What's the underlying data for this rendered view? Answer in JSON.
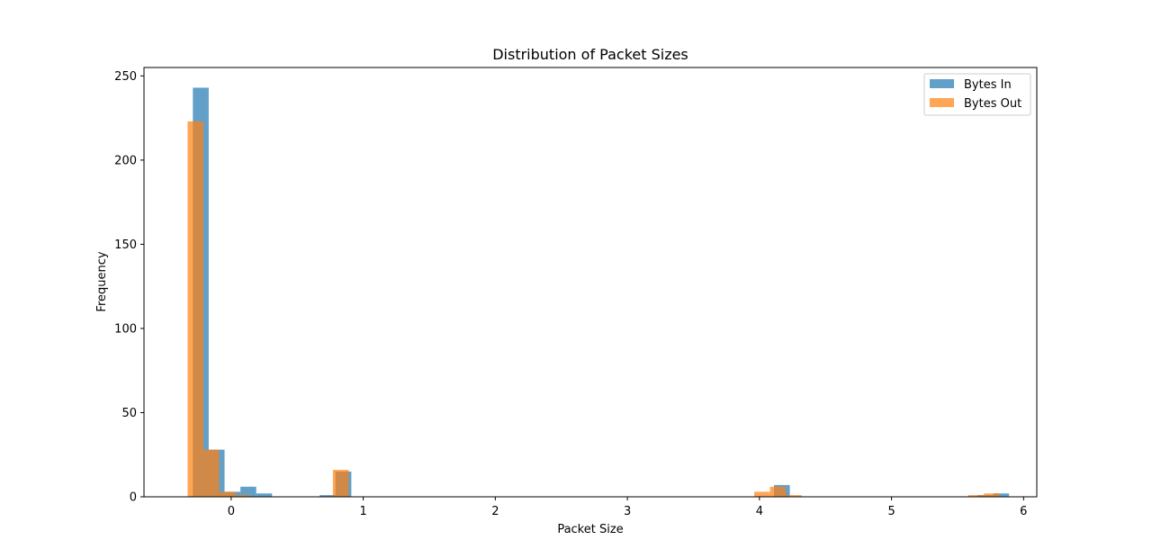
{
  "chart_data": {
    "type": "bar",
    "title": "Distribution of Packet Sizes",
    "xlabel": "Packet Size",
    "ylabel": "Frequency",
    "xlim": [
      -0.66,
      6.1
    ],
    "ylim": [
      0,
      255
    ],
    "xticks": [
      "0",
      "1",
      "2",
      "3",
      "4",
      "5",
      "6"
    ],
    "yticks": [
      "0",
      "50",
      "100",
      "150",
      "200",
      "250"
    ],
    "grid": false,
    "legend_position": "top-right",
    "series": [
      {
        "name": "Bytes In",
        "color": "#1f77b4",
        "opacity": 0.7,
        "bins": [
          {
            "x0": -0.29,
            "x1": -0.17,
            "count": 243
          },
          {
            "x0": -0.17,
            "x1": -0.05,
            "count": 28
          },
          {
            "x0": -0.05,
            "x1": 0.07,
            "count": 3
          },
          {
            "x0": 0.07,
            "x1": 0.19,
            "count": 6
          },
          {
            "x0": 0.19,
            "x1": 0.31,
            "count": 2
          },
          {
            "x0": 0.67,
            "x1": 0.79,
            "count": 1
          },
          {
            "x0": 0.79,
            "x1": 0.91,
            "count": 15
          },
          {
            "x0": 4.11,
            "x1": 4.23,
            "count": 7
          },
          {
            "x0": 5.65,
            "x1": 5.77,
            "count": 1
          },
          {
            "x0": 5.77,
            "x1": 5.89,
            "count": 2
          }
        ]
      },
      {
        "name": "Bytes Out",
        "color": "#ff7f0e",
        "opacity": 0.7,
        "bins": [
          {
            "x0": -0.33,
            "x1": -0.21,
            "count": 223
          },
          {
            "x0": -0.21,
            "x1": -0.09,
            "count": 28
          },
          {
            "x0": -0.09,
            "x1": 0.03,
            "count": 3
          },
          {
            "x0": 0.03,
            "x1": 0.15,
            "count": 1
          },
          {
            "x0": 0.77,
            "x1": 0.89,
            "count": 16
          },
          {
            "x0": 3.96,
            "x1": 4.08,
            "count": 3
          },
          {
            "x0": 4.08,
            "x1": 4.2,
            "count": 6
          },
          {
            "x0": 4.2,
            "x1": 4.32,
            "count": 1
          },
          {
            "x0": 5.58,
            "x1": 5.7,
            "count": 1
          },
          {
            "x0": 5.7,
            "x1": 5.82,
            "count": 2
          }
        ]
      }
    ]
  }
}
